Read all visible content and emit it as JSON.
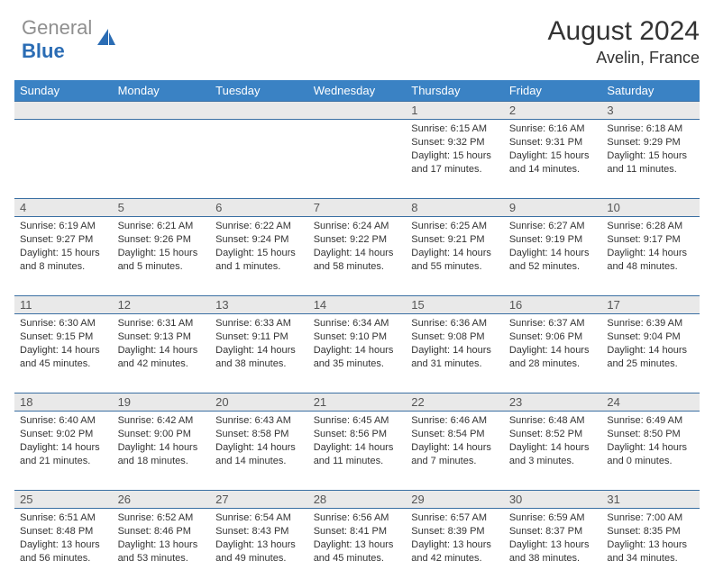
{
  "logo": {
    "word1": "General",
    "word2": "Blue"
  },
  "title": "August 2024",
  "location": "Avelin, France",
  "colors": {
    "header_bg": "#3a82c4",
    "header_text": "#ffffff",
    "daynum_bg": "#e9e9e9",
    "row_border": "#3a6fa3",
    "logo_gray": "#8f8f8f",
    "logo_blue": "#2a6cb4"
  },
  "weekdays": [
    "Sunday",
    "Monday",
    "Tuesday",
    "Wednesday",
    "Thursday",
    "Friday",
    "Saturday"
  ],
  "weeks": [
    [
      null,
      null,
      null,
      null,
      {
        "n": "1",
        "sunrise": "6:15 AM",
        "sunset": "9:32 PM",
        "dh": "15",
        "dm": "17"
      },
      {
        "n": "2",
        "sunrise": "6:16 AM",
        "sunset": "9:31 PM",
        "dh": "15",
        "dm": "14"
      },
      {
        "n": "3",
        "sunrise": "6:18 AM",
        "sunset": "9:29 PM",
        "dh": "15",
        "dm": "11"
      }
    ],
    [
      {
        "n": "4",
        "sunrise": "6:19 AM",
        "sunset": "9:27 PM",
        "dh": "15",
        "dm": "8"
      },
      {
        "n": "5",
        "sunrise": "6:21 AM",
        "sunset": "9:26 PM",
        "dh": "15",
        "dm": "5"
      },
      {
        "n": "6",
        "sunrise": "6:22 AM",
        "sunset": "9:24 PM",
        "dh": "15",
        "dm": "1"
      },
      {
        "n": "7",
        "sunrise": "6:24 AM",
        "sunset": "9:22 PM",
        "dh": "14",
        "dm": "58"
      },
      {
        "n": "8",
        "sunrise": "6:25 AM",
        "sunset": "9:21 PM",
        "dh": "14",
        "dm": "55"
      },
      {
        "n": "9",
        "sunrise": "6:27 AM",
        "sunset": "9:19 PM",
        "dh": "14",
        "dm": "52"
      },
      {
        "n": "10",
        "sunrise": "6:28 AM",
        "sunset": "9:17 PM",
        "dh": "14",
        "dm": "48"
      }
    ],
    [
      {
        "n": "11",
        "sunrise": "6:30 AM",
        "sunset": "9:15 PM",
        "dh": "14",
        "dm": "45"
      },
      {
        "n": "12",
        "sunrise": "6:31 AM",
        "sunset": "9:13 PM",
        "dh": "14",
        "dm": "42"
      },
      {
        "n": "13",
        "sunrise": "6:33 AM",
        "sunset": "9:11 PM",
        "dh": "14",
        "dm": "38"
      },
      {
        "n": "14",
        "sunrise": "6:34 AM",
        "sunset": "9:10 PM",
        "dh": "14",
        "dm": "35"
      },
      {
        "n": "15",
        "sunrise": "6:36 AM",
        "sunset": "9:08 PM",
        "dh": "14",
        "dm": "31"
      },
      {
        "n": "16",
        "sunrise": "6:37 AM",
        "sunset": "9:06 PM",
        "dh": "14",
        "dm": "28"
      },
      {
        "n": "17",
        "sunrise": "6:39 AM",
        "sunset": "9:04 PM",
        "dh": "14",
        "dm": "25"
      }
    ],
    [
      {
        "n": "18",
        "sunrise": "6:40 AM",
        "sunset": "9:02 PM",
        "dh": "14",
        "dm": "21"
      },
      {
        "n": "19",
        "sunrise": "6:42 AM",
        "sunset": "9:00 PM",
        "dh": "14",
        "dm": "18"
      },
      {
        "n": "20",
        "sunrise": "6:43 AM",
        "sunset": "8:58 PM",
        "dh": "14",
        "dm": "14"
      },
      {
        "n": "21",
        "sunrise": "6:45 AM",
        "sunset": "8:56 PM",
        "dh": "14",
        "dm": "11"
      },
      {
        "n": "22",
        "sunrise": "6:46 AM",
        "sunset": "8:54 PM",
        "dh": "14",
        "dm": "7"
      },
      {
        "n": "23",
        "sunrise": "6:48 AM",
        "sunset": "8:52 PM",
        "dh": "14",
        "dm": "3"
      },
      {
        "n": "24",
        "sunrise": "6:49 AM",
        "sunset": "8:50 PM",
        "dh": "14",
        "dm": "0"
      }
    ],
    [
      {
        "n": "25",
        "sunrise": "6:51 AM",
        "sunset": "8:48 PM",
        "dh": "13",
        "dm": "56"
      },
      {
        "n": "26",
        "sunrise": "6:52 AM",
        "sunset": "8:46 PM",
        "dh": "13",
        "dm": "53"
      },
      {
        "n": "27",
        "sunrise": "6:54 AM",
        "sunset": "8:43 PM",
        "dh": "13",
        "dm": "49"
      },
      {
        "n": "28",
        "sunrise": "6:56 AM",
        "sunset": "8:41 PM",
        "dh": "13",
        "dm": "45"
      },
      {
        "n": "29",
        "sunrise": "6:57 AM",
        "sunset": "8:39 PM",
        "dh": "13",
        "dm": "42"
      },
      {
        "n": "30",
        "sunrise": "6:59 AM",
        "sunset": "8:37 PM",
        "dh": "13",
        "dm": "38"
      },
      {
        "n": "31",
        "sunrise": "7:00 AM",
        "sunset": "8:35 PM",
        "dh": "13",
        "dm": "34"
      }
    ]
  ]
}
